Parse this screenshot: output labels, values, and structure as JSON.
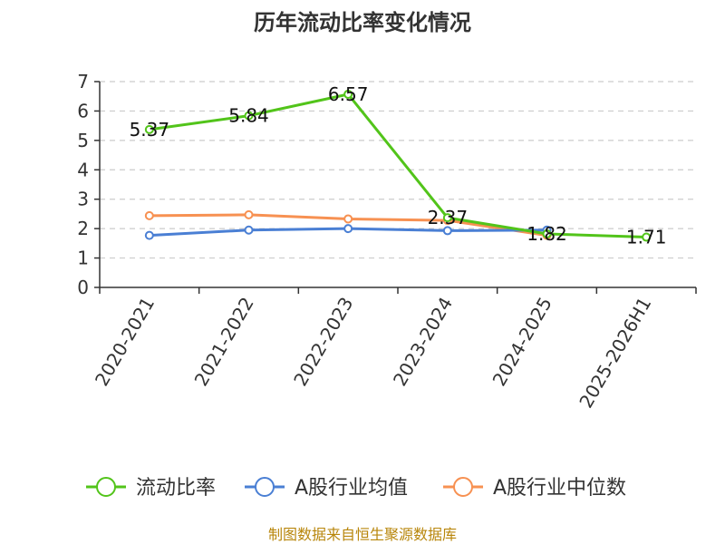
{
  "chart_data": {
    "type": "line",
    "title": "历年流动比率变化情况",
    "categories": [
      "2020-2021",
      "2021-2022",
      "2022-2023",
      "2023-2024",
      "2024-2025",
      "2025-2026H1"
    ],
    "ylim": [
      0,
      7
    ],
    "yticks": [
      "0",
      "1",
      "2",
      "3",
      "4",
      "5",
      "6",
      "7"
    ],
    "grid": true,
    "legend_position": "bottom",
    "series": [
      {
        "name": "流动比率",
        "color": "#52c41a",
        "values": [
          5.37,
          5.84,
          6.57,
          2.37,
          1.82,
          1.71
        ],
        "labels": [
          "5.37",
          "5.84",
          "6.57",
          "2.37",
          "1.82",
          "1.71"
        ]
      },
      {
        "name": "A股行业均值",
        "color": "#4a7fd4",
        "values": [
          1.77,
          1.95,
          2.0,
          1.93,
          1.95,
          null
        ]
      },
      {
        "name": "A股行业中位数",
        "color": "#f79152",
        "values": [
          2.44,
          2.47,
          2.33,
          2.28,
          1.77,
          null
        ]
      }
    ],
    "source": "制图数据来自恒生聚源数据库"
  }
}
